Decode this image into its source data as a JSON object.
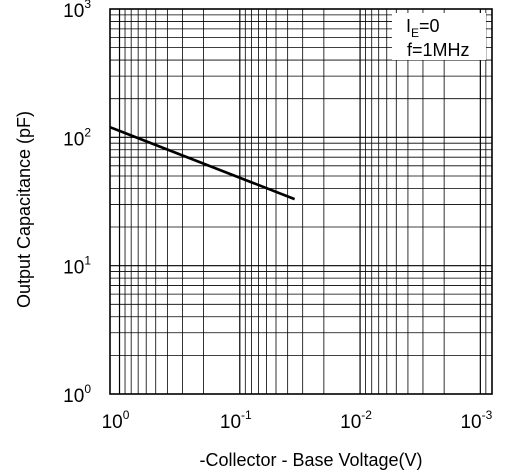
{
  "chart_data": {
    "type": "line",
    "title": "",
    "xlabel": "-Collector - Base Voltage(V)",
    "ylabel": "Output Capacitance (pF)",
    "x_scale": "log",
    "y_scale": "log",
    "x_reversed": true,
    "xlim": [
      1.2,
      0.0008
    ],
    "ylim": [
      1,
      1000
    ],
    "grid": true,
    "x_ticks": [
      {
        "base": "10",
        "exp": "0"
      },
      {
        "base": "10",
        "exp": "-1"
      },
      {
        "base": "10",
        "exp": "-2"
      },
      {
        "base": "10",
        "exp": "-3"
      }
    ],
    "y_ticks": [
      {
        "base": "10",
        "exp": "0"
      },
      {
        "base": "10",
        "exp": "1"
      },
      {
        "base": "10",
        "exp": "2"
      },
      {
        "base": "10",
        "exp": "3"
      }
    ],
    "conditions": [
      {
        "main": "I",
        "sub": "E",
        "rest": "=0"
      },
      {
        "main": "f=1MHz",
        "sub": "",
        "rest": ""
      }
    ],
    "legend_position": "top-right",
    "series": [
      {
        "x": [
          1.2,
          0.035
        ],
        "y": [
          120,
          33
        ]
      }
    ]
  }
}
